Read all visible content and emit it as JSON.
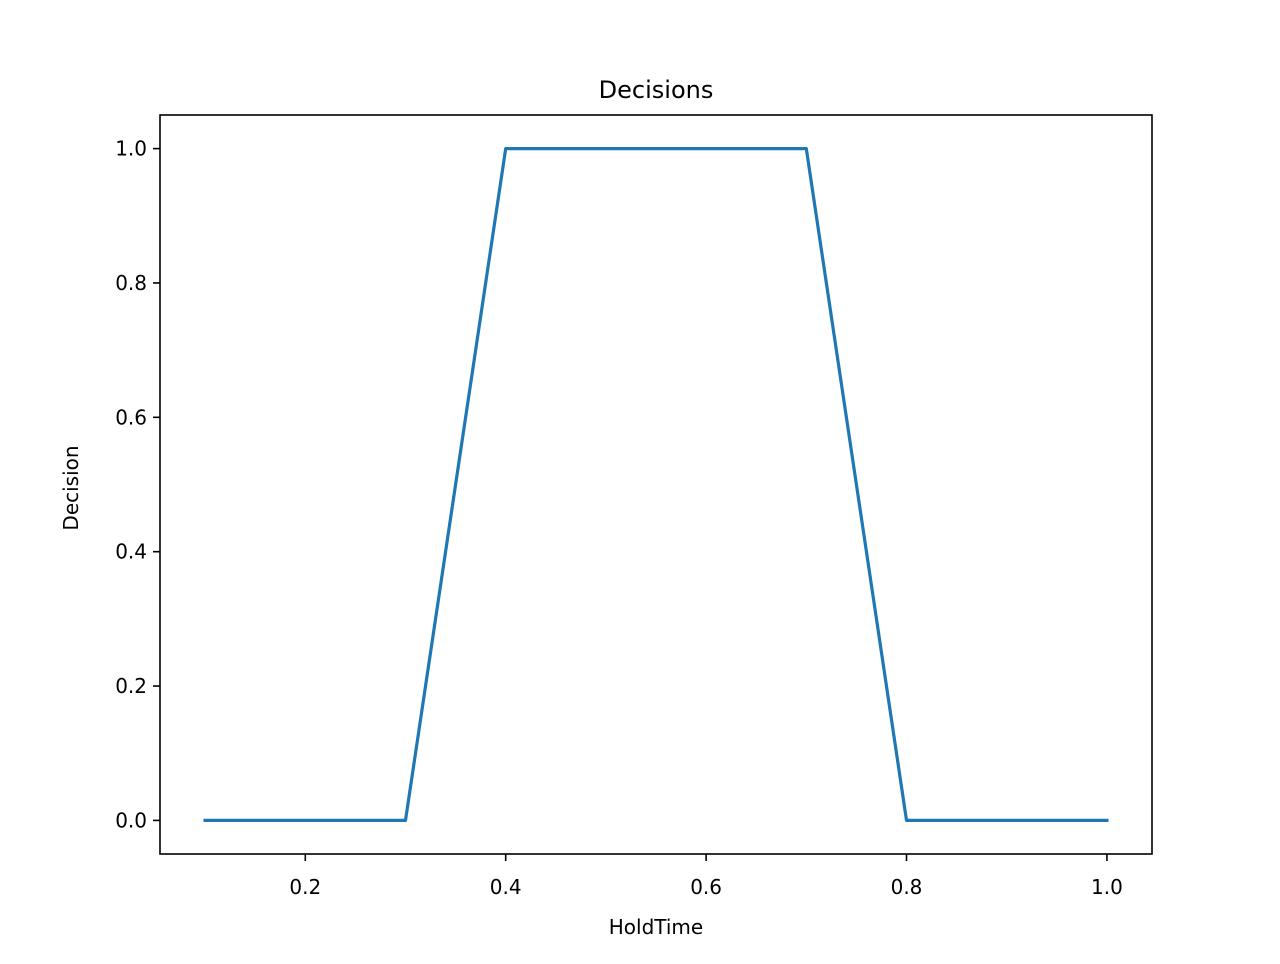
{
  "chart_data": {
    "type": "line",
    "title": "Decisions",
    "xlabel": "HoldTime",
    "ylabel": "Decision",
    "xlim": [
      0.055,
      1.045
    ],
    "ylim": [
      -0.05,
      1.05
    ],
    "xticks": [
      0.2,
      0.4,
      0.6,
      0.8,
      1.0
    ],
    "xtick_labels": [
      "0.2",
      "0.4",
      "0.6",
      "0.8",
      "1.0"
    ],
    "yticks": [
      0.0,
      0.2,
      0.4,
      0.6,
      0.8,
      1.0
    ],
    "ytick_labels": [
      "0.0",
      "0.2",
      "0.4",
      "0.6",
      "0.8",
      "1.0"
    ],
    "grid": false,
    "series": [
      {
        "color": "#1f77b4",
        "x": [
          0.1,
          0.2,
          0.3,
          0.4,
          0.5,
          0.6,
          0.7,
          0.8,
          0.9,
          1.0
        ],
        "y": [
          0.0,
          0.0,
          0.0,
          1.0,
          1.0,
          1.0,
          1.0,
          0.0,
          0.0,
          0.0
        ]
      }
    ]
  }
}
